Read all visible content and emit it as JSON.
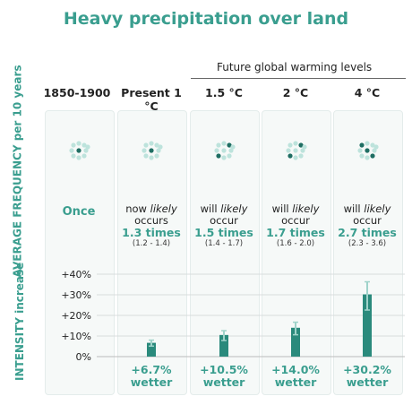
{
  "title": "Heavy precipitation over land",
  "future_label": "Future global warming levels",
  "columns": [
    "1850-1900",
    "Present 1 °C",
    "1.5 °C",
    "2 °C",
    "4 °C"
  ],
  "frequency_label": "AVERAGE FREQUENCY per 10 years",
  "intensity_label": "INTENSITY increase",
  "frequency": [
    {
      "text": "Once"
    },
    {
      "line1": "now likely",
      "line2": "occurs",
      "value": "1.3 times",
      "range": "(1.2 - 1.4)"
    },
    {
      "line1": "will likely",
      "line2": "occur",
      "value": "1.5 times",
      "range": "(1.4 - 1.7)"
    },
    {
      "line1": "will likely",
      "line2": "occur",
      "value": "1.7 times",
      "range": "(1.6 - 2.0)"
    },
    {
      "line1": "will likely",
      "line2": "occur",
      "value": "2.7 times",
      "range": "(2.3 - 3.6)"
    }
  ],
  "wetter": [
    {
      "value": "+6.7%",
      "word": "wetter"
    },
    {
      "value": "+10.5%",
      "word": "wetter"
    },
    {
      "value": "+14.0%",
      "word": "wetter"
    },
    {
      "value": "+30.2%",
      "word": "wetter"
    }
  ],
  "dot_counts": [
    1,
    1,
    2,
    2,
    3
  ],
  "colors": {
    "accent": "#3a9e8f",
    "bar": "#2a8a7c",
    "dot_light": "#bde3dc",
    "dot_dark": "#1f6e63",
    "error": "#9fd3ca"
  },
  "chart_data": {
    "type": "bar",
    "categories": [
      "Present 1 °C",
      "1.5 °C",
      "2 °C",
      "4 °C"
    ],
    "values": [
      6.7,
      10.5,
      14.0,
      30.2
    ],
    "error_low": [
      5.1,
      7.8,
      10.6,
      22.6
    ],
    "error_high": [
      8.0,
      12.6,
      16.7,
      36.3
    ],
    "ylabel": "INTENSITY increase",
    "yticks": [
      "0%",
      "+10%",
      "+20%",
      "+30%",
      "+40%"
    ],
    "ylim": [
      0,
      40
    ]
  }
}
